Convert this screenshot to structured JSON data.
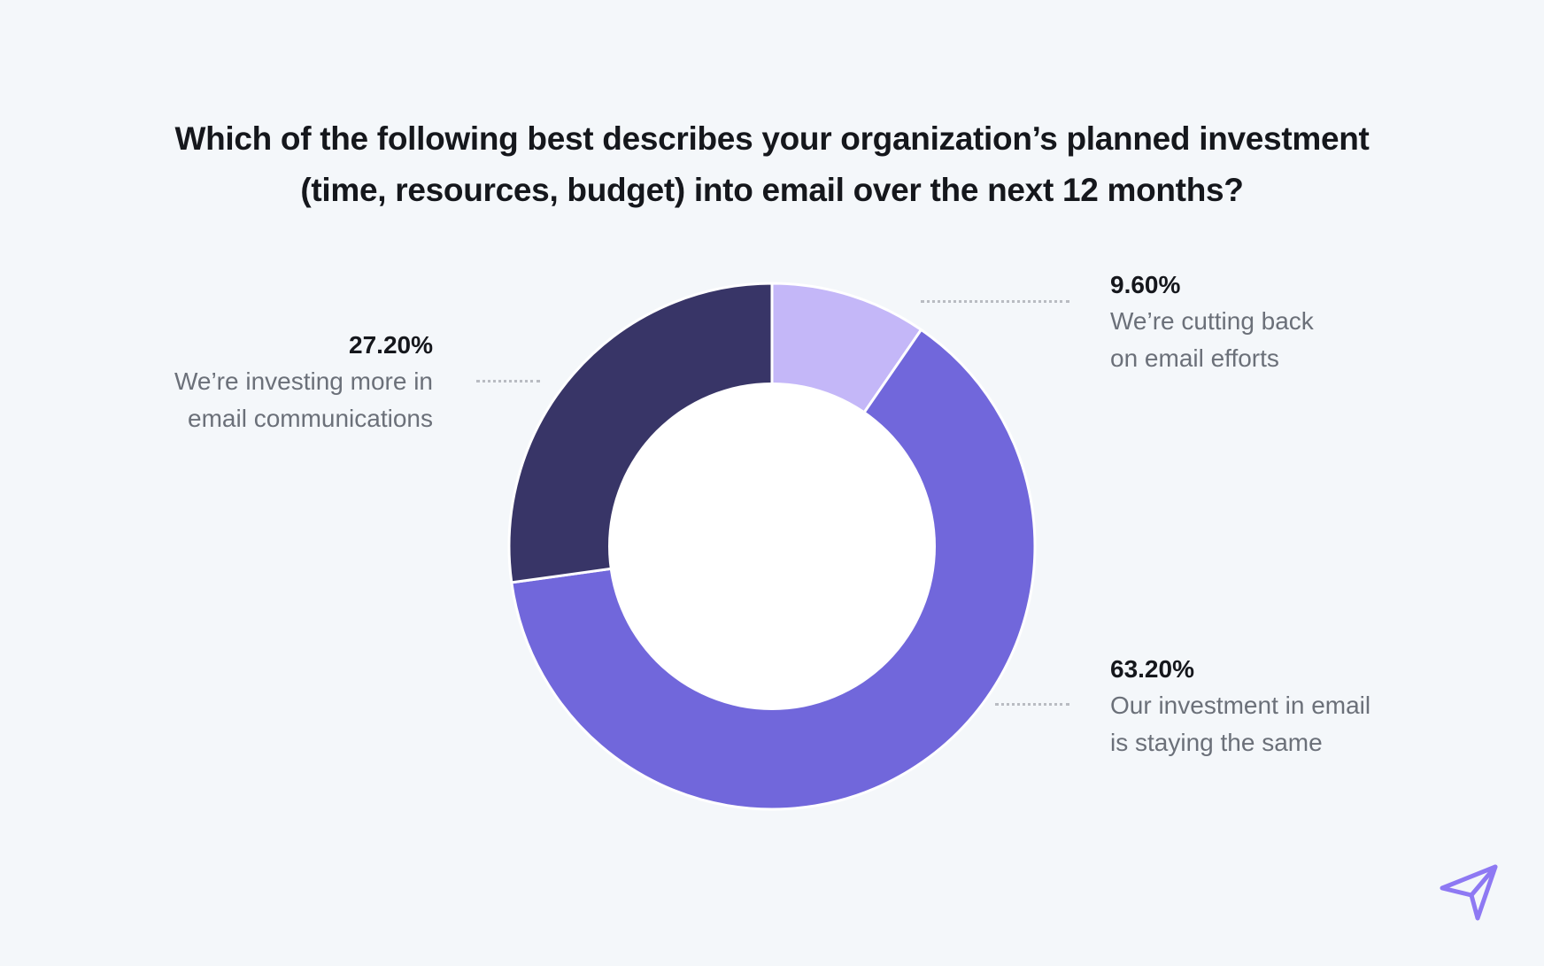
{
  "title": [
    "Which of the following best describes your organization’s planned investment",
    "(time, resources, budget) into email over the next 12 months?"
  ],
  "chart_data": {
    "type": "pie",
    "style": "donut",
    "title": "Which of the following best describes your organization’s planned investment (time, resources, budget) into email over the next 12 months?",
    "slices": [
      {
        "value": 9.6,
        "value_label": "9.60%",
        "label_lines": [
          "We’re cutting back",
          "on email efforts"
        ],
        "color": "#c4b7f8"
      },
      {
        "value": 63.2,
        "value_label": "63.20%",
        "label_lines": [
          "Our investment in email",
          "is staying the same"
        ],
        "color": "#7167db"
      },
      {
        "value": 27.2,
        "value_label": "27.20%",
        "label_lines": [
          "We’re investing more in",
          "email communications"
        ],
        "color": "#383567"
      }
    ],
    "start_angle": "12 o'clock",
    "direction": "clockwise",
    "legend": "none"
  },
  "colors": {
    "background": "#f4f7fa",
    "title_text": "#15171c",
    "label_text": "#6b7079",
    "leader_dots": "#b9bcc2",
    "logo": "#8e79f3"
  },
  "icons": {
    "logo": "paper-plane-arrow-icon"
  }
}
